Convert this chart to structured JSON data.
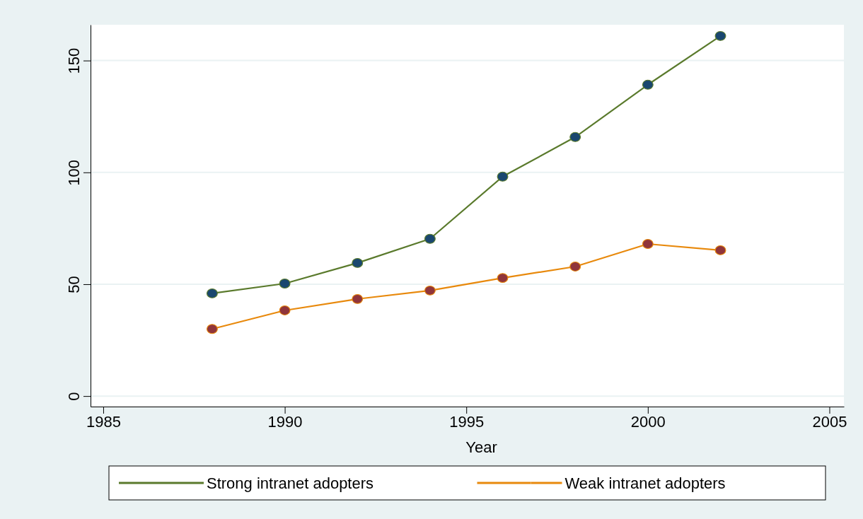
{
  "chart_data": {
    "type": "line",
    "xlabel": "Year",
    "x": [
      1988,
      1990,
      1992,
      1994,
      1996,
      1998,
      2000,
      2002
    ],
    "series": [
      {
        "name": "Strong intranet adopters",
        "color": "#5a7a2c",
        "values": [
          45.9,
          50.3,
          59.5,
          70.3,
          98.1,
          115.8,
          139.2,
          161
        ]
      },
      {
        "name": "Weak intranet adopters",
        "color": "#e8890c",
        "values": [
          30,
          38.3,
          43.4,
          47.2,
          52.8,
          57.9,
          68,
          65.2
        ]
      }
    ],
    "xlim": [
      1984.65,
      2005.4
    ],
    "xticks": [
      1985,
      1990,
      1995,
      2000,
      2005
    ],
    "ylim": [
      -4.7,
      166
    ],
    "yticks": [
      0,
      50,
      100,
      150
    ],
    "grid": "y",
    "legend": "bottom",
    "marker": "circle",
    "line_style": "solid"
  }
}
